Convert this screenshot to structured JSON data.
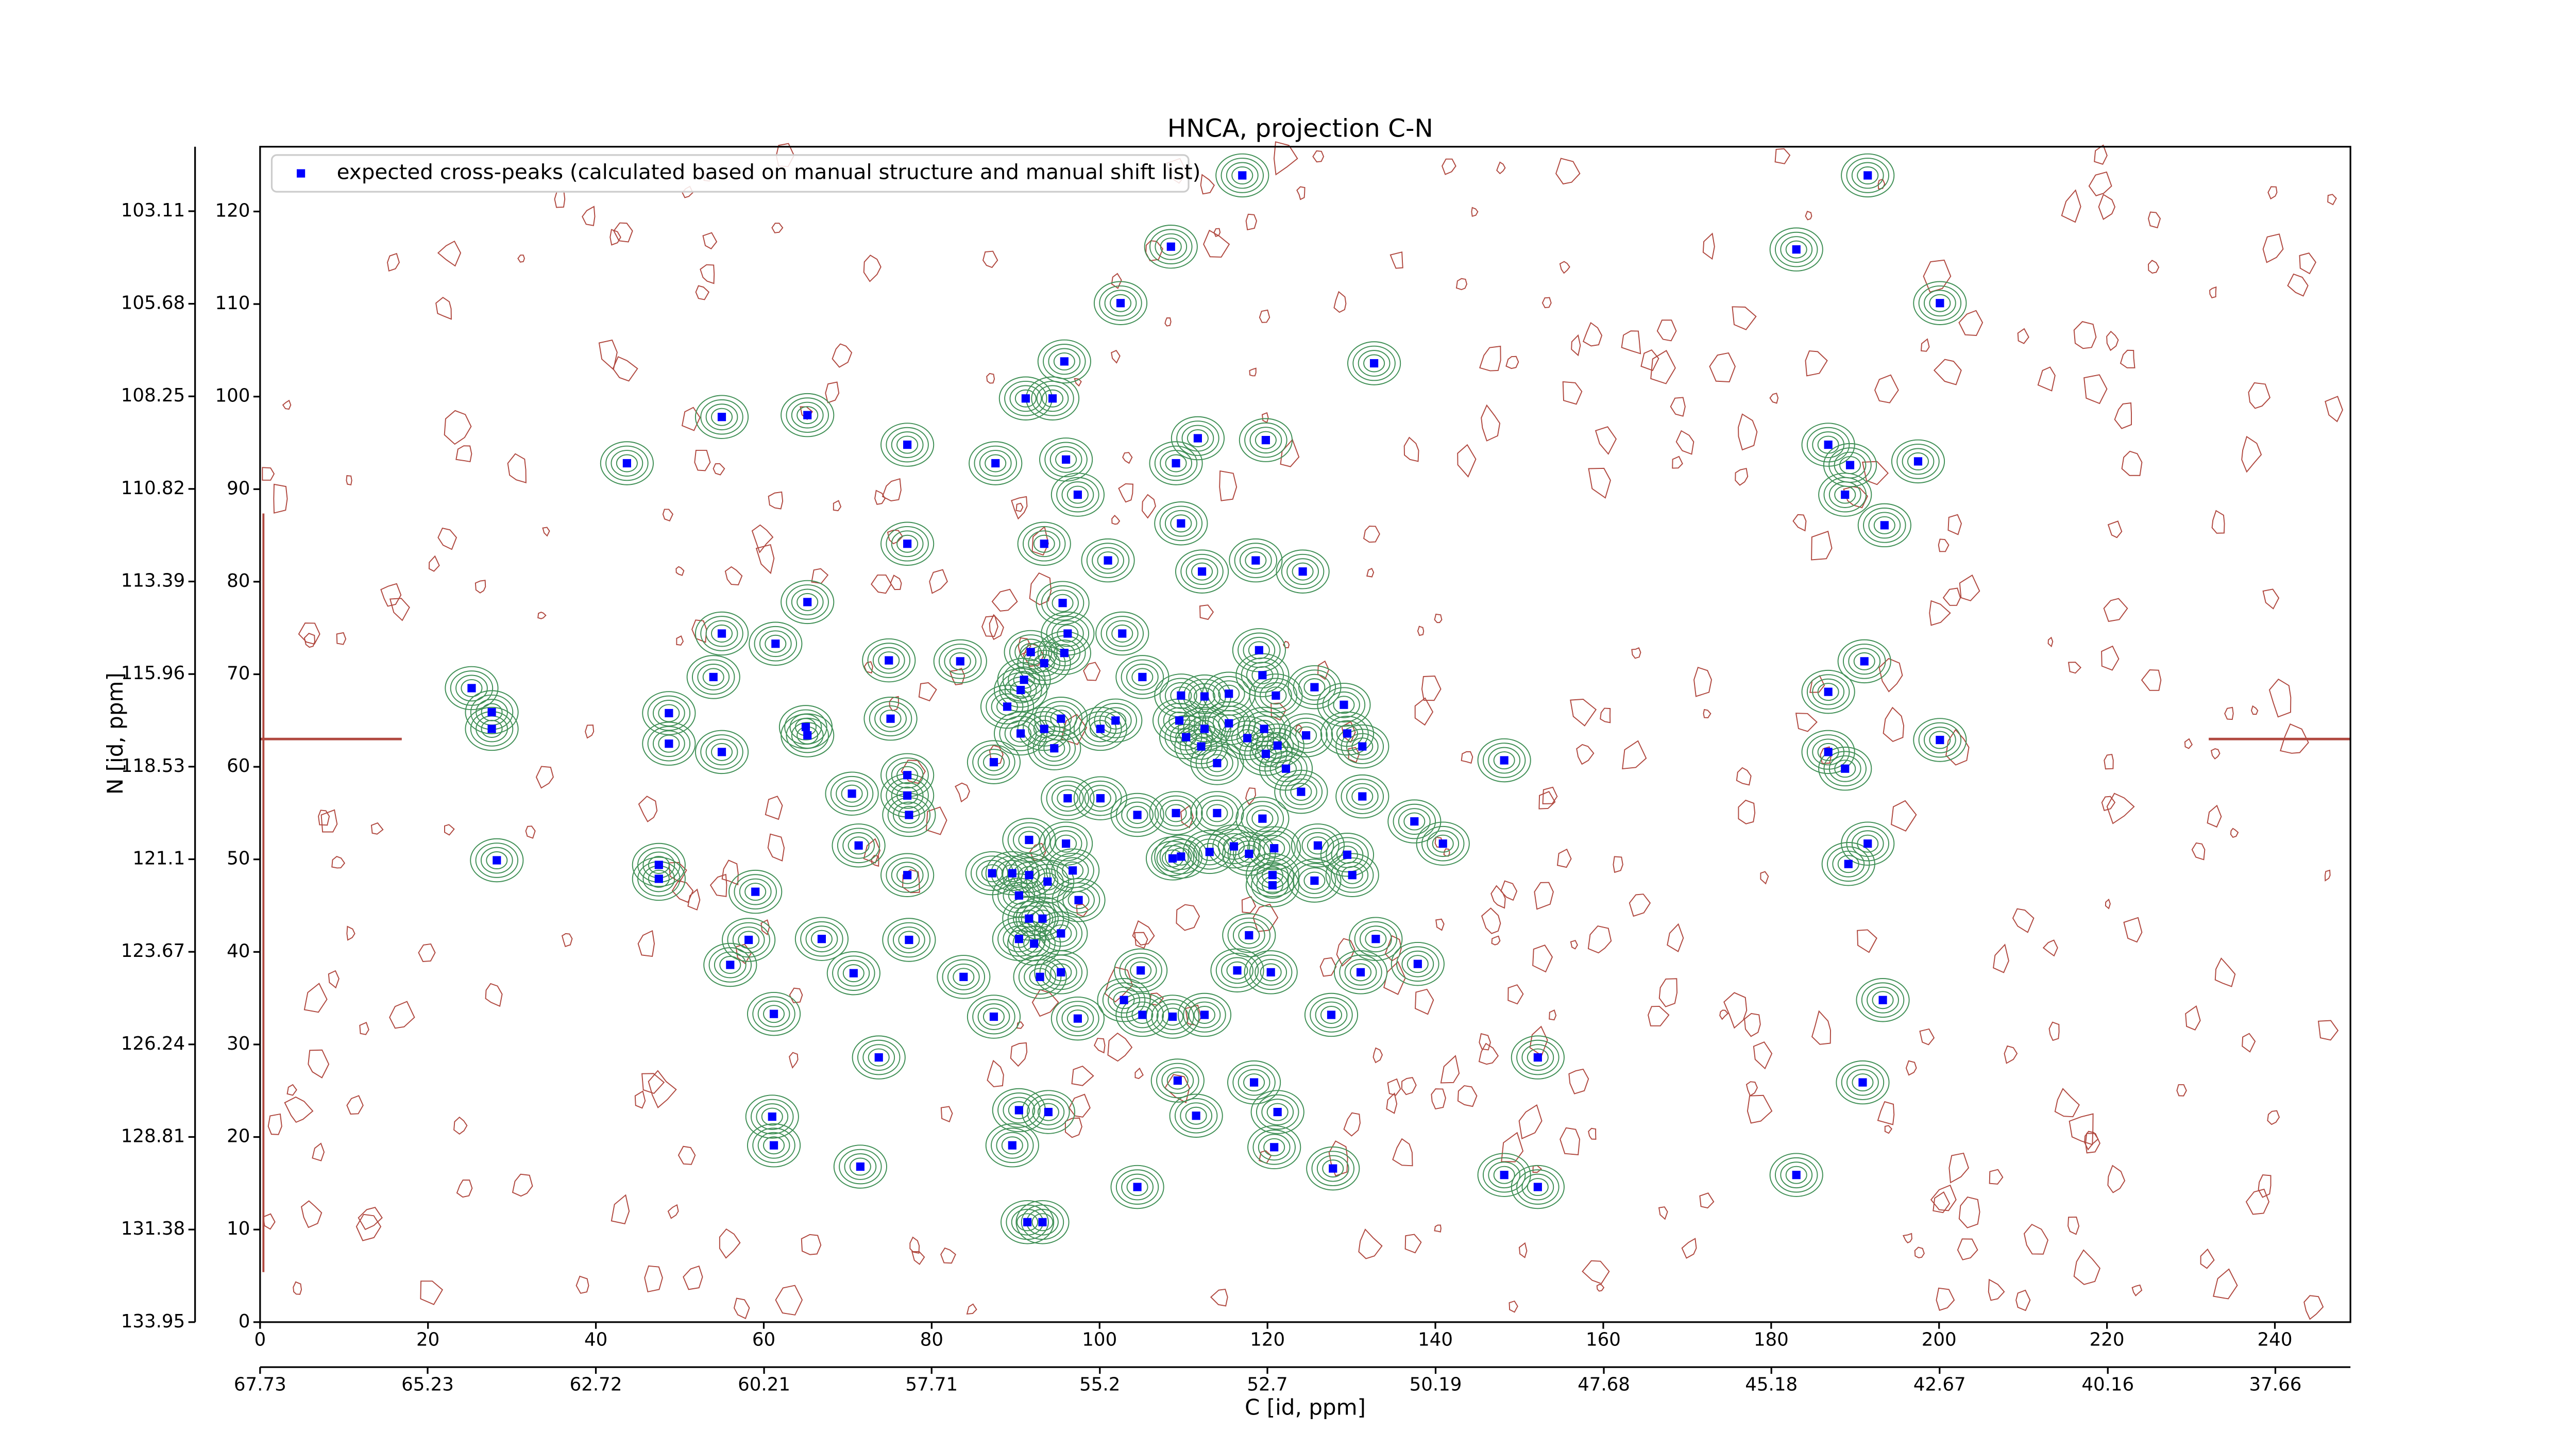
{
  "chart_data": {
    "type": "scatter",
    "title": "HNCA, projection C-N",
    "x_label": "C [id, ppm]",
    "y_label": "N [id, ppm]",
    "xlim": [
      0,
      249
    ],
    "ylim": [
      0,
      127
    ],
    "xticks": [
      0,
      20,
      40,
      60,
      80,
      100,
      120,
      140,
      160,
      180,
      200,
      220,
      240
    ],
    "yticks": [
      0,
      10,
      20,
      30,
      40,
      50,
      60,
      70,
      80,
      90,
      100,
      110,
      120
    ],
    "x2lim": [
      67.73,
      36.54
    ],
    "x2ticks": [
      67.73,
      65.23,
      62.72,
      60.21,
      57.71,
      55.2,
      52.7,
      50.19,
      47.68,
      45.18,
      42.67,
      40.16,
      37.66
    ],
    "y2lim": [
      133.95,
      101.32
    ],
    "y2ticks": [
      133.95,
      131.38,
      128.81,
      126.24,
      123.67,
      121.1,
      118.53,
      115.96,
      113.39,
      110.82,
      108.25,
      105.68,
      103.11
    ],
    "legend": "upper left",
    "grid": false,
    "series": [
      {
        "name": "expected cross-peaks (calculated based on manual structure and manual shift list)",
        "color": "#0000ff",
        "x": [
          117.0,
          191.5,
          108.5,
          183.0,
          102.5,
          200.1,
          132.7,
          95.8,
          91.2,
          94.4,
          55.0,
          65.2,
          43.7,
          77.1,
          87.6,
          96.0,
          111.7,
          109.1,
          119.8,
          97.4,
          186.8,
          189.4,
          188.8,
          197.5,
          193.5,
          109.7,
          93.4,
          77.1,
          101.0,
          118.6,
          112.2,
          124.2,
          65.2,
          95.6,
          55.0,
          61.4,
          102.7,
          96.2,
          91.8,
          95.8,
          74.9,
          83.4,
          93.4,
          119.0,
          54.0,
          25.2,
          91.0,
          90.6,
          105.1,
          125.6,
          119.4,
          186.8,
          191.1,
          109.7,
          112.5,
          115.4,
          121.0,
          129.1,
          89.0,
          90.6,
          93.4,
          95.4,
          100.1,
          101.9,
          48.7,
          27.6,
          27.6,
          65.0,
          65.2,
          75.1,
          109.5,
          110.3,
          112.5,
          112.1,
          115.4,
          117.6,
          119.6,
          119.8,
          121.2,
          122.2,
          124.6,
          129.5,
          131.3,
          200.1,
          48.7,
          55.0,
          186.8,
          188.8,
          87.4,
          94.6,
          114.0,
          148.2,
          77.1,
          70.5,
          77.1,
          96.2,
          100.1,
          124.0,
          131.3,
          77.3,
          104.5,
          109.1,
          114.0,
          119.4,
          137.5,
          91.6,
          96.0,
          116.0,
          71.3,
          191.5,
          28.2,
          189.2,
          113.1,
          108.7,
          109.7,
          117.8,
          120.8,
          126.0,
          129.5,
          87.2,
          89.6,
          91.6,
          93.8,
          96.8,
          77.1,
          120.6,
          120.6,
          125.6,
          130.1,
          140.9,
          47.5,
          47.5,
          59.0,
          90.4,
          97.5,
          91.6,
          93.2,
          95.4,
          90.4,
          92.2,
          66.9,
          58.2,
          77.3,
          117.8,
          132.9,
          56.0,
          70.7,
          83.8,
          92.9,
          95.4,
          104.9,
          116.4,
          120.4,
          137.9,
          131.1,
          193.3,
          102.9,
          87.4,
          97.4,
          61.2,
          105.1,
          108.7,
          112.5,
          127.6,
          73.7,
          152.2,
          190.9,
          109.3,
          118.4,
          90.4,
          93.9,
          61.0,
          111.5,
          121.2,
          61.2,
          89.6,
          120.8,
          71.5,
          127.8,
          183.0,
          148.2,
          152.2,
          104.5,
          91.4,
          93.2
        ],
        "values": [
          123.9,
          123.9,
          116.2,
          115.9,
          110.1,
          110.1,
          103.6,
          103.8,
          99.8,
          99.8,
          97.8,
          98.0,
          92.8,
          94.8,
          92.8,
          93.2,
          95.5,
          92.8,
          95.3,
          89.4,
          94.8,
          92.6,
          89.4,
          93.0,
          86.1,
          86.3,
          84.1,
          84.1,
          82.3,
          82.3,
          81.1,
          81.1,
          77.8,
          77.7,
          74.4,
          73.3,
          74.4,
          74.4,
          72.4,
          72.3,
          71.5,
          71.4,
          71.2,
          72.6,
          69.7,
          68.5,
          69.4,
          68.3,
          69.7,
          68.6,
          69.9,
          68.1,
          71.4,
          67.7,
          67.6,
          67.9,
          67.7,
          66.7,
          66.5,
          63.6,
          64.1,
          65.2,
          64.1,
          65.0,
          65.8,
          65.9,
          64.1,
          64.3,
          63.4,
          65.2,
          65.0,
          63.2,
          64.1,
          62.2,
          64.7,
          63.1,
          64.1,
          61.4,
          62.3,
          59.8,
          63.4,
          63.6,
          62.2,
          62.9,
          62.5,
          61.6,
          61.6,
          59.8,
          60.5,
          62.0,
          60.4,
          60.7,
          59.1,
          57.1,
          56.9,
          56.6,
          56.6,
          57.3,
          56.8,
          54.8,
          54.8,
          55.0,
          55.0,
          54.4,
          54.1,
          52.1,
          51.7,
          51.4,
          51.5,
          51.7,
          49.9,
          49.5,
          50.8,
          50.1,
          50.3,
          50.6,
          51.2,
          51.5,
          50.5,
          48.5,
          48.5,
          48.3,
          47.6,
          48.8,
          48.3,
          48.3,
          47.2,
          47.7,
          48.3,
          51.7,
          49.4,
          47.9,
          46.5,
          46.1,
          45.6,
          43.6,
          43.6,
          42.0,
          41.4,
          40.9,
          41.4,
          41.3,
          41.3,
          41.8,
          41.4,
          38.6,
          37.7,
          37.3,
          37.3,
          37.8,
          38.0,
          38.0,
          37.8,
          38.7,
          37.8,
          34.8,
          34.8,
          33.0,
          32.8,
          33.3,
          33.2,
          33.0,
          33.2,
          33.2,
          28.6,
          28.6,
          25.9,
          26.1,
          25.9,
          22.9,
          22.7,
          22.2,
          22.3,
          22.7,
          19.1,
          19.1,
          18.9,
          16.8,
          16.6,
          15.9,
          15.9,
          14.6,
          14.6,
          10.8,
          10.8
        ]
      }
    ]
  }
}
